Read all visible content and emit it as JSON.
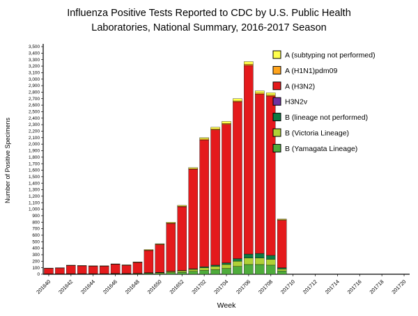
{
  "chart_data": {
    "type": "bar",
    "stacked": true,
    "title": "Influenza Positive Tests Reported to CDC by U.S. Public Health Laboratories, National Summary, 2016-2017 Season",
    "title_lines": [
      "Influenza Positive Tests Reported to CDC by U.S. Public Health",
      "Laboratories, National Summary, 2016-2017 Season"
    ],
    "xlabel": "Week",
    "ylabel": "Number of Positive Specimens",
    "ylim": [
      0,
      3500
    ],
    "ytick_step": 100,
    "grid": false,
    "legend_position": "upper right",
    "categories": [
      "201640",
      "201641",
      "201642",
      "201643",
      "201644",
      "201645",
      "201646",
      "201647",
      "201648",
      "201649",
      "201650",
      "201651",
      "201652",
      "201701",
      "201702",
      "201703",
      "201704",
      "201705",
      "201706",
      "201707",
      "201708",
      "201709",
      "201710",
      "201711",
      "201712",
      "201713",
      "201714",
      "201715",
      "201716",
      "201717",
      "201718",
      "201719",
      "201720"
    ],
    "xtick_labels": [
      "201640",
      "201642",
      "201644",
      "201646",
      "201648",
      "201650",
      "201652",
      "201702",
      "201704",
      "201706",
      "201708",
      "201710",
      "201712",
      "201714",
      "201716",
      "201718",
      "201720"
    ],
    "series_bottom_to_top": [
      {
        "name": "B (Yamagata Lineage)",
        "color": "#4FAC3C",
        "values": [
          3,
          3,
          5,
          5,
          5,
          5,
          6,
          6,
          8,
          12,
          15,
          25,
          30,
          45,
          60,
          70,
          90,
          120,
          150,
          150,
          140,
          50,
          0,
          0,
          0,
          0,
          0,
          0,
          0,
          0,
          0,
          0,
          0
        ]
      },
      {
        "name": "B (Victoria Lineage)",
        "color": "#B0D136",
        "values": [
          2,
          2,
          3,
          3,
          3,
          3,
          4,
          4,
          5,
          8,
          10,
          15,
          20,
          30,
          40,
          50,
          60,
          80,
          100,
          100,
          90,
          30,
          0,
          0,
          0,
          0,
          0,
          0,
          0,
          0,
          0,
          0,
          0
        ]
      },
      {
        "name": "B (lineage not performed)",
        "color": "#0C7B43",
        "values": [
          1,
          1,
          1,
          1,
          1,
          1,
          2,
          2,
          2,
          4,
          5,
          5,
          8,
          10,
          15,
          20,
          25,
          40,
          60,
          70,
          60,
          20,
          0,
          0,
          0,
          0,
          0,
          0,
          0,
          0,
          0,
          0,
          0
        ]
      },
      {
        "name": "H3N2v",
        "color": "#7030A0",
        "values": [
          0,
          0,
          0,
          0,
          0,
          0,
          0,
          0,
          0,
          0,
          0,
          0,
          0,
          0,
          0,
          0,
          0,
          0,
          0,
          0,
          0,
          0,
          0,
          0,
          0,
          0,
          0,
          0,
          0,
          0,
          0,
          0,
          0
        ]
      },
      {
        "name": "A (H3N2)",
        "color": "#E41A1C",
        "values": [
          85,
          90,
          125,
          120,
          115,
          115,
          140,
          125,
          165,
          340,
          425,
          735,
          980,
          1530,
          1950,
          2080,
          2130,
          2410,
          2900,
          2450,
          2450,
          730,
          0,
          0,
          0,
          0,
          0,
          0,
          0,
          0,
          0,
          0,
          0
        ]
      },
      {
        "name": "A (H1N1)pdm09",
        "color": "#FFA41C",
        "values": [
          2,
          2,
          3,
          3,
          3,
          3,
          4,
          4,
          5,
          8,
          7,
          10,
          10,
          10,
          15,
          15,
          15,
          15,
          20,
          15,
          15,
          8,
          0,
          0,
          0,
          0,
          0,
          0,
          0,
          0,
          0,
          0,
          0
        ]
      },
      {
        "name": "A (subtyping not performed)",
        "color": "#FFFF4D",
        "values": [
          2,
          2,
          3,
          3,
          3,
          3,
          4,
          4,
          5,
          8,
          8,
          10,
          12,
          15,
          20,
          25,
          30,
          35,
          40,
          35,
          35,
          12,
          0,
          0,
          0,
          0,
          0,
          0,
          0,
          0,
          0,
          0,
          0
        ]
      }
    ]
  }
}
